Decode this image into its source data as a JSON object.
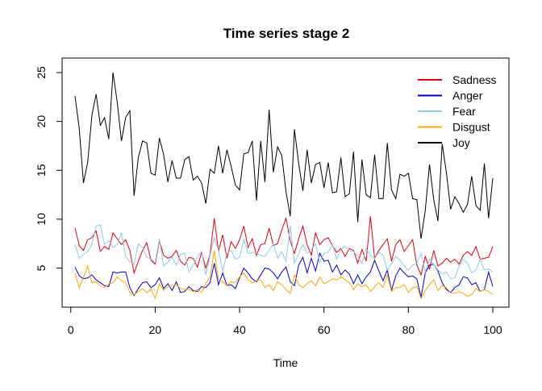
{
  "chart_data": {
    "type": "line",
    "title": "Time series stage 2",
    "xlabel": "Time",
    "ylabel": "",
    "xlim": [
      1,
      100
    ],
    "ylim": [
      2,
      25
    ],
    "x_ticks": [
      0,
      20,
      40,
      60,
      80,
      100
    ],
    "y_ticks": [
      5,
      10,
      15,
      20,
      25
    ],
    "grid": false,
    "legend_position": "top-right",
    "series": [
      {
        "name": "Sadness",
        "color": "#e3000f",
        "values": [
          9.1,
          7.3,
          6.8,
          7.9,
          8.1,
          8.8,
          6.7,
          7.2,
          6.9,
          8.6,
          8.0,
          7.4,
          7.9,
          6.8,
          4.5,
          5.7,
          6.8,
          7.6,
          5.8,
          5.4,
          7.8,
          6.3,
          6.0,
          6.2,
          6.8,
          5.7,
          5.3,
          6.1,
          6.0,
          5.1,
          6.6,
          5.0,
          6.4,
          10.1,
          6.7,
          8.4,
          6.0,
          7.7,
          7.0,
          7.9,
          9.3,
          7.1,
          8.0,
          6.3,
          7.4,
          7.5,
          9.1,
          7.3,
          7.5,
          8.9,
          10.1,
          7.8,
          6.5,
          8.0,
          9.3,
          7.4,
          6.3,
          8.6,
          7.4,
          7.9,
          8.1,
          7.3,
          6.6,
          7.0,
          6.2,
          7.0,
          6.8,
          5.5,
          6.9,
          5.7,
          10.3,
          6.0,
          6.8,
          7.4,
          8.0,
          5.7,
          7.4,
          7.9,
          6.7,
          7.3,
          7.9,
          5.3,
          4.3,
          6.2,
          4.9,
          6.8,
          5.2,
          5.5,
          6.0,
          5.6,
          5.9,
          5.4,
          6.3,
          6.7,
          6.3,
          7.2,
          5.9,
          6.0,
          6.1,
          7.2
        ]
      },
      {
        "name": "Anger",
        "color": "#0000cd",
        "values": [
          5.1,
          4.2,
          3.9,
          4.0,
          4.3,
          3.8,
          3.5,
          3.2,
          3.1,
          4.6,
          4.5,
          4.6,
          4.6,
          3.0,
          2.2,
          2.9,
          3.5,
          3.6,
          3.0,
          3.3,
          4.0,
          2.9,
          3.4,
          2.7,
          3.6,
          2.5,
          2.6,
          3.1,
          2.7,
          2.6,
          3.1,
          3.0,
          3.5,
          5.5,
          3.3,
          4.5,
          3.2,
          3.3,
          2.9,
          4.0,
          5.0,
          4.5,
          3.9,
          3.6,
          4.3,
          5.0,
          4.9,
          4.5,
          3.9,
          4.6,
          5.1,
          3.6,
          3.2,
          5.3,
          6.1,
          4.5,
          6.0,
          4.7,
          6.5,
          5.7,
          5.8,
          4.6,
          5.3,
          4.3,
          4.8,
          4.4,
          3.4,
          4.3,
          3.4,
          4.1,
          4.6,
          5.8,
          4.7,
          3.7,
          4.8,
          2.7,
          4.2,
          5.0,
          4.5,
          4.1,
          4.2,
          3.9,
          2.0,
          4.5,
          5.3,
          5.4,
          4.7,
          3.5,
          2.8,
          2.5,
          3.0,
          3.3,
          4.1,
          4.0,
          3.3,
          3.5,
          2.6,
          2.8,
          4.6,
          3.1
        ]
      },
      {
        "name": "Fear",
        "color": "#8ecae6",
        "values": [
          7.4,
          6.0,
          6.4,
          6.7,
          7.4,
          9.3,
          9.4,
          7.4,
          7.8,
          7.1,
          7.4,
          8.6,
          6.2,
          5.6,
          5.4,
          7.5,
          7.1,
          6.1,
          5.9,
          5.6,
          8.0,
          5.2,
          5.6,
          6.1,
          5.3,
          6.4,
          6.5,
          4.6,
          5.3,
          6.1,
          6.7,
          4.3,
          6.3,
          8.1,
          6.8,
          4.7,
          6.5,
          6.8,
          5.9,
          6.1,
          7.9,
          6.5,
          6.6,
          6.5,
          6.3,
          6.2,
          6.8,
          7.5,
          6.0,
          6.7,
          5.7,
          9.3,
          5.5,
          6.5,
          7.4,
          6.5,
          6.9,
          7.5,
          5.6,
          6.5,
          6.6,
          7.4,
          5.9,
          6.9,
          7.2,
          6.8,
          6.7,
          6.2,
          5.5,
          7.0,
          6.3,
          6.0,
          6.6,
          6.3,
          4.8,
          5.5,
          6.2,
          5.8,
          5.2,
          4.8,
          5.3,
          5.5,
          6.5,
          4.6,
          5.9,
          5.4,
          4.8,
          4.4,
          4.6,
          3.9,
          4.0,
          5.2,
          5.9,
          5.5,
          4.5,
          4.8,
          5.9,
          4.8,
          4.9,
          4.6
        ]
      },
      {
        "name": "Disgust",
        "color": "#ffa500",
        "values": [
          4.5,
          3.0,
          4.0,
          5.2,
          3.5,
          3.6,
          3.2,
          3.0,
          3.4,
          3.5,
          4.1,
          3.7,
          3.5,
          2.5,
          2.3,
          2.6,
          2.9,
          2.5,
          2.8,
          1.9,
          3.4,
          2.7,
          3.1,
          3.2,
          3.3,
          2.9,
          2.8,
          2.8,
          2.6,
          2.8,
          2.5,
          3.4,
          4.1,
          6.8,
          3.8,
          3.6,
          3.2,
          3.6,
          3.5,
          4.1,
          4.5,
          3.8,
          3.5,
          3.7,
          3.8,
          3.0,
          3.3,
          2.7,
          3.6,
          3.3,
          2.8,
          2.4,
          4.3,
          3.3,
          3.0,
          3.4,
          3.7,
          3.2,
          4.1,
          3.4,
          3.6,
          3.9,
          3.8,
          4.1,
          3.8,
          3.5,
          2.8,
          3.4,
          3.1,
          3.3,
          2.6,
          3.1,
          3.5,
          3.0,
          4.3,
          2.6,
          3.0,
          3.0,
          3.3,
          2.5,
          3.0,
          3.1,
          1.9,
          2.7,
          3.3,
          3.8,
          2.7,
          3.2,
          3.0,
          2.5,
          2.4,
          2.6,
          2.4,
          2.1,
          2.3,
          2.9,
          2.6,
          2.8,
          2.6,
          2.3
        ]
      },
      {
        "name": "Joy",
        "color": "#000000",
        "values": [
          22.6,
          19.3,
          13.7,
          15.8,
          20.6,
          22.8,
          19.6,
          20.4,
          18.2,
          25.0,
          22.0,
          18.0,
          20.4,
          21.1,
          12.4,
          16.3,
          18.0,
          17.8,
          14.7,
          14.5,
          18.3,
          16.6,
          13.8,
          16.0,
          14.2,
          14.2,
          16.1,
          16.4,
          14.0,
          14.4,
          13.7,
          11.6,
          15.1,
          14.7,
          17.5,
          14.7,
          17.1,
          15.4,
          13.5,
          13.0,
          16.7,
          16.8,
          18.0,
          11.9,
          18.0,
          13.8,
          21.2,
          14.8,
          17.4,
          16.5,
          12.8,
          10.3,
          19.2,
          15.7,
          12.9,
          17.1,
          13.7,
          15.6,
          15.8,
          13.2,
          15.8,
          12.7,
          12.8,
          16.3,
          12.3,
          12.6,
          16.9,
          9.7,
          16.1,
          12.5,
          12.2,
          16.6,
          12.1,
          12.1,
          17.8,
          13.0,
          12.1,
          14.6,
          14.4,
          14.7,
          12.1,
          12.0,
          8.0,
          10.9,
          15.6,
          12.0,
          9.8,
          17.7,
          14.8,
          11.0,
          12.3,
          11.6,
          10.7,
          11.5,
          14.4,
          11.4,
          10.9,
          15.7,
          10.1,
          14.2
        ]
      }
    ]
  }
}
